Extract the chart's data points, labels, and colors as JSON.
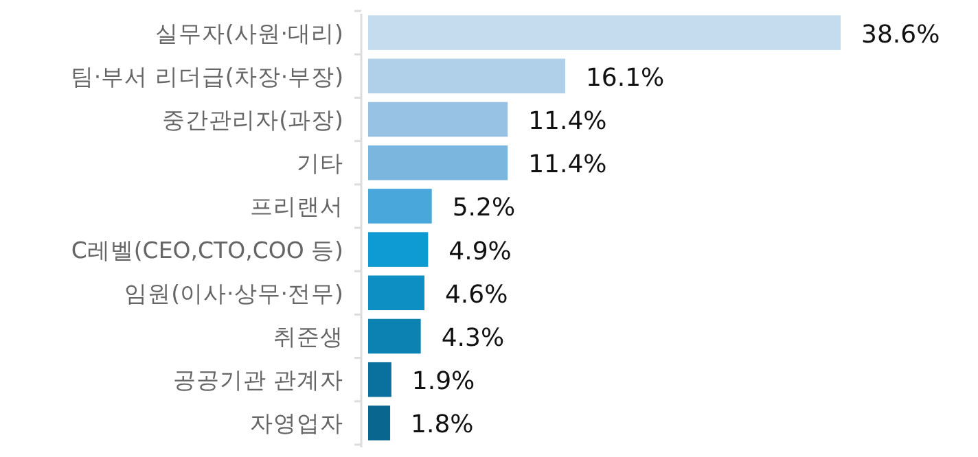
{
  "chart_data": {
    "type": "bar",
    "orientation": "horizontal",
    "relative": false,
    "categories": [
      "실무자(사원·대리)",
      "팀·부서 리더급(차장·부장)",
      "중간관리자(과장)",
      "기타",
      "프리랜서",
      "C레벨(CEO,CTO,COO 등)",
      "임원(이사·상무·전무)",
      "취준생",
      "공공기관 관계자",
      "자영업자"
    ],
    "values": [
      38.6,
      16.1,
      11.4,
      11.4,
      5.2,
      4.9,
      4.6,
      4.3,
      1.9,
      1.8
    ],
    "value_labels": [
      "38.6%",
      "16.1%",
      "11.4%",
      "11.4%",
      "5.2%",
      "4.9%",
      "4.6%",
      "4.3%",
      "1.9%",
      "1.8%"
    ],
    "colors": [
      "#c5dcee",
      "#b0d0ea",
      "#97c2e3",
      "#7ab6de",
      "#4aa7dc",
      "#0e9ad3",
      "#0d8fc4",
      "#0b82b2",
      "#0a719e",
      "#09668f"
    ]
  }
}
